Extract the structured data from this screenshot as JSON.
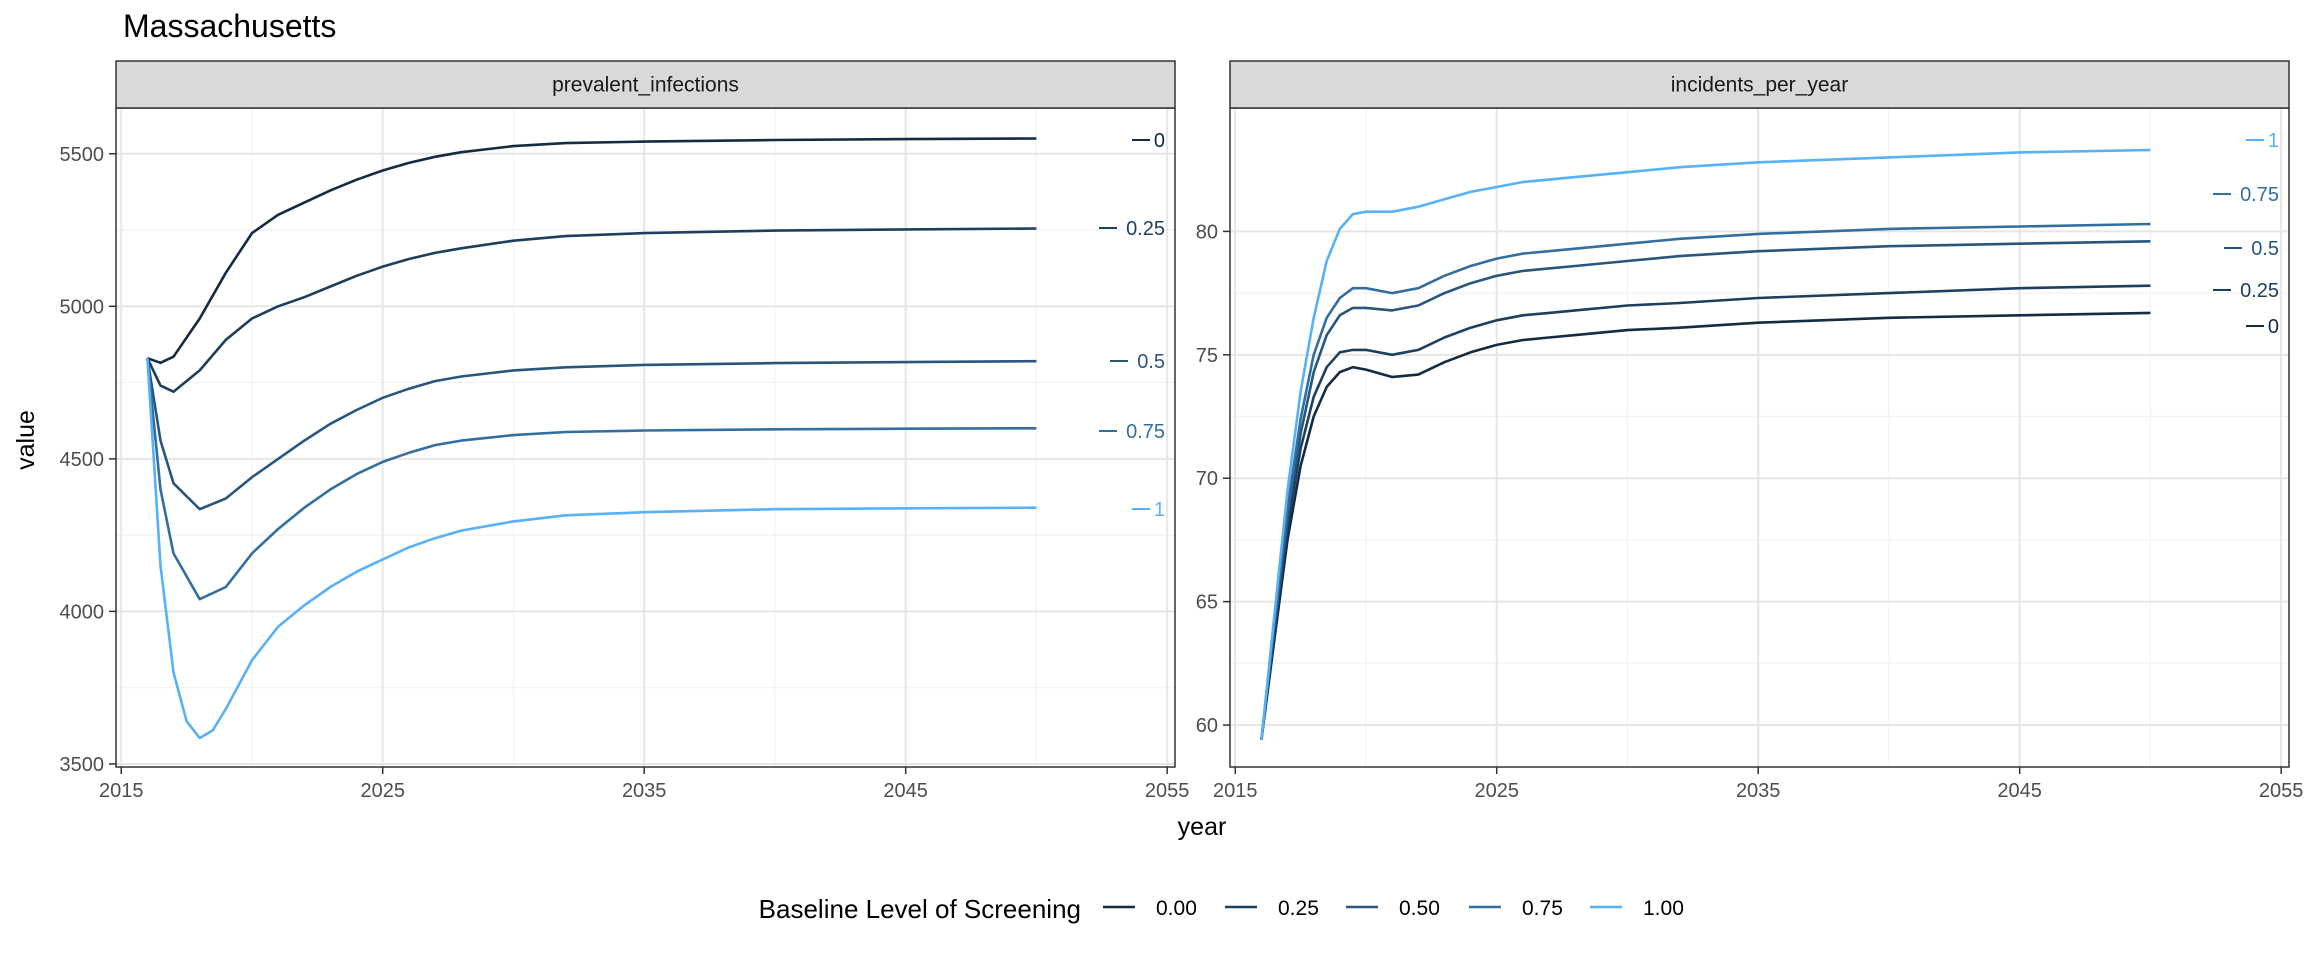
{
  "chart_data": {
    "type": "line",
    "title": "Massachusetts",
    "xlabel": "year",
    "ylabel": "value",
    "grid": true,
    "legend": {
      "title": "Baseline Level of Screening",
      "position": "bottom",
      "entries": [
        "0.00",
        "0.25",
        "0.50",
        "0.75",
        "1.00"
      ]
    },
    "series_colors": [
      "#132B43",
      "#1D3F5F",
      "#28567F",
      "#336EA0",
      "#56B1F7"
    ],
    "panels": [
      {
        "name": "prevalent_infections",
        "xlim": [
          2014.8,
          2055.3
        ],
        "ylim": [
          3490,
          5650
        ],
        "x_ticks": [
          2015,
          2025,
          2035,
          2045,
          2055
        ],
        "y_ticks": [
          3500,
          4000,
          4500,
          5000,
          5500
        ],
        "series": [
          {
            "name": "0",
            "label": "0",
            "x": [
              2016,
              2016.5,
              2017,
              2018,
              2019,
              2020,
              2021,
              2022,
              2023,
              2024,
              2025,
              2026,
              2027,
              2028,
              2030,
              2032,
              2035,
              2040,
              2045,
              2050
            ],
            "y": [
              4830,
              4815,
              4835,
              4960,
              5110,
              5240,
              5300,
              5340,
              5380,
              5415,
              5445,
              5470,
              5490,
              5505,
              5525,
              5535,
              5540,
              5545,
              5548,
              5550
            ]
          },
          {
            "name": "0.25",
            "label": "0.25",
            "x": [
              2016,
              2016.5,
              2017,
              2018,
              2019,
              2020,
              2021,
              2022,
              2023,
              2024,
              2025,
              2026,
              2027,
              2028,
              2030,
              2032,
              2035,
              2040,
              2045,
              2050
            ],
            "y": [
              4830,
              4740,
              4720,
              4790,
              4890,
              4960,
              5000,
              5030,
              5065,
              5100,
              5130,
              5155,
              5175,
              5190,
              5215,
              5230,
              5240,
              5248,
              5252,
              5255
            ]
          },
          {
            "name": "0.5",
            "label": "0.5",
            "x": [
              2016,
              2016.5,
              2017,
              2018,
              2019,
              2020,
              2021,
              2022,
              2023,
              2024,
              2025,
              2026,
              2027,
              2028,
              2030,
              2032,
              2035,
              2040,
              2045,
              2050
            ],
            "y": [
              4830,
              4560,
              4420,
              4335,
              4370,
              4440,
              4500,
              4560,
              4615,
              4660,
              4700,
              4730,
              4755,
              4770,
              4790,
              4800,
              4808,
              4814,
              4817,
              4820
            ]
          },
          {
            "name": "0.75",
            "label": "0.75",
            "x": [
              2016,
              2016.5,
              2017,
              2018,
              2019,
              2020,
              2021,
              2022,
              2023,
              2024,
              2025,
              2026,
              2027,
              2028,
              2030,
              2032,
              2035,
              2040,
              2045,
              2050
            ],
            "y": [
              4830,
              4400,
              4190,
              4040,
              4080,
              4190,
              4270,
              4340,
              4400,
              4450,
              4490,
              4520,
              4545,
              4560,
              4578,
              4588,
              4593,
              4597,
              4599,
              4600
            ]
          },
          {
            "name": "1",
            "label": "1",
            "x": [
              2016,
              2016.5,
              2017,
              2017.5,
              2018,
              2018.5,
              2019,
              2020,
              2021,
              2022,
              2023,
              2024,
              2025,
              2026,
              2027,
              2028,
              2030,
              2032,
              2035,
              2040,
              2045,
              2050
            ],
            "y": [
              4830,
              4150,
              3800,
              3640,
              3585,
              3610,
              3680,
              3840,
              3950,
              4020,
              4080,
              4130,
              4170,
              4210,
              4240,
              4265,
              4295,
              4315,
              4325,
              4335,
              4338,
              4340
            ]
          }
        ]
      },
      {
        "name": "incidents_per_year",
        "xlim": [
          2014.8,
          2055.3
        ],
        "ylim": [
          58.3,
          85.0
        ],
        "x_ticks": [
          2015,
          2025,
          2035,
          2045,
          2055
        ],
        "y_ticks": [
          60,
          65,
          70,
          75,
          80
        ],
        "series": [
          {
            "name": "0",
            "label": "0",
            "x": [
              2016,
              2016.5,
              2017,
              2017.5,
              2018,
              2018.5,
              2019,
              2019.5,
              2020,
              2021,
              2022,
              2023,
              2024,
              2025,
              2026,
              2027,
              2028,
              2030,
              2032,
              2035,
              2040,
              2045,
              2050
            ],
            "y": [
              59.4,
              63.5,
              67.5,
              70.5,
              72.5,
              73.7,
              74.3,
              74.5,
              74.4,
              74.1,
              74.2,
              74.7,
              75.1,
              75.4,
              75.6,
              75.7,
              75.8,
              76.0,
              76.1,
              76.3,
              76.5,
              76.6,
              76.7
            ]
          },
          {
            "name": "0.25",
            "label": "0.25",
            "x": [
              2016,
              2016.5,
              2017,
              2017.5,
              2018,
              2018.5,
              2019,
              2019.5,
              2020,
              2021,
              2022,
              2023,
              2024,
              2025,
              2026,
              2027,
              2028,
              2030,
              2032,
              2035,
              2040,
              2045,
              2050
            ],
            "y": [
              59.4,
              63.8,
              68.0,
              71.2,
              73.3,
              74.5,
              75.1,
              75.2,
              75.2,
              75.0,
              75.2,
              75.7,
              76.1,
              76.4,
              76.6,
              76.7,
              76.8,
              77.0,
              77.1,
              77.3,
              77.5,
              77.7,
              77.8
            ]
          },
          {
            "name": "0.5",
            "label": "0.5",
            "x": [
              2016,
              2016.5,
              2017,
              2017.5,
              2018,
              2018.5,
              2019,
              2019.5,
              2020,
              2021,
              2022,
              2023,
              2024,
              2025,
              2026,
              2027,
              2028,
              2030,
              2032,
              2035,
              2040,
              2045,
              2050
            ],
            "y": [
              59.4,
              64.0,
              68.4,
              71.8,
              74.3,
              75.8,
              76.6,
              76.9,
              76.9,
              76.8,
              77.0,
              77.5,
              77.9,
              78.2,
              78.4,
              78.5,
              78.6,
              78.8,
              79.0,
              79.2,
              79.4,
              79.5,
              79.6
            ]
          },
          {
            "name": "0.75",
            "label": "0.75",
            "x": [
              2016,
              2016.5,
              2017,
              2017.5,
              2018,
              2018.5,
              2019,
              2019.5,
              2020,
              2021,
              2022,
              2023,
              2024,
              2025,
              2026,
              2027,
              2028,
              2030,
              2032,
              2035,
              2040,
              2045,
              2050
            ],
            "y": [
              59.4,
              64.2,
              68.8,
              72.4,
              75.0,
              76.5,
              77.3,
              77.7,
              77.7,
              77.5,
              77.7,
              78.2,
              78.6,
              78.9,
              79.1,
              79.2,
              79.3,
              79.5,
              79.7,
              79.9,
              80.1,
              80.2,
              80.3
            ]
          },
          {
            "name": "1",
            "label": "1",
            "x": [
              2016,
              2016.5,
              2017,
              2017.5,
              2018,
              2018.5,
              2019,
              2019.5,
              2020,
              2021,
              2022,
              2023,
              2024,
              2025,
              2026,
              2027,
              2028,
              2030,
              2032,
              2035,
              2040,
              2045,
              2050
            ],
            "y": [
              59.4,
              64.5,
              69.5,
              73.5,
              76.5,
              78.8,
              80.1,
              80.7,
              80.8,
              80.8,
              81.0,
              81.3,
              81.6,
              81.8,
              82.0,
              82.1,
              82.2,
              82.4,
              82.6,
              82.8,
              83.0,
              83.2,
              83.3
            ]
          }
        ]
      }
    ]
  }
}
